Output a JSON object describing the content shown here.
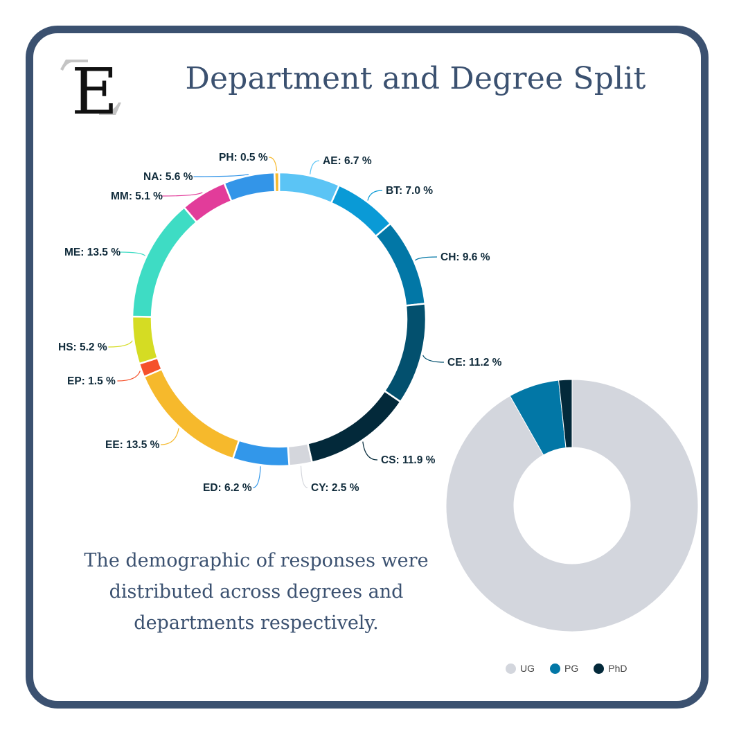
{
  "header": {
    "logo_letter": "E",
    "title": "Department and Degree Split"
  },
  "caption": {
    "line1": "The demographic of responses were",
    "line2": "distributed across degrees and",
    "line3": "departments respectively."
  },
  "colors": {
    "frame": "#3b5170",
    "text": "#3b5170",
    "label": "#0f2a3a"
  },
  "chart_data": [
    {
      "type": "pie",
      "subtype": "donut",
      "title": "Department Split",
      "start": "top, clockwise",
      "categories": [
        "AE",
        "BT",
        "CH",
        "CE",
        "CS",
        "CY",
        "ED",
        "EE",
        "EP",
        "HS",
        "ME",
        "MM",
        "NA",
        "PH"
      ],
      "values": [
        6.7,
        7.0,
        9.6,
        11.2,
        11.9,
        2.5,
        6.2,
        13.5,
        1.5,
        5.2,
        13.5,
        5.1,
        5.6,
        0.5
      ],
      "labels": [
        "AE: 6.7 %",
        "BT: 7.0 %",
        "CH: 9.6 %",
        "CE: 11.2 %",
        "CS: 11.9 %",
        "CY: 2.5 %",
        "ED: 6.2 %",
        "EE: 13.5 %",
        "EP: 1.5 %",
        "HS: 5.2 %",
        "ME: 13.5 %",
        "MM: 5.1 %",
        "NA: 5.6 %",
        "PH: 0.5 %"
      ],
      "colors": [
        "#5bc4f5",
        "#0a9ad6",
        "#0277a6",
        "#03506e",
        "#03293a",
        "#d4d6dc",
        "#3297ea",
        "#f6b92c",
        "#f5512b",
        "#d5dc23",
        "#3edcc4",
        "#e23c9a",
        "#3395e8",
        "#f6b92c"
      ],
      "unit": "%"
    },
    {
      "type": "pie",
      "subtype": "donut",
      "title": "Degree Split",
      "start": "top, counter-clockwise",
      "categories": [
        "UG",
        "PG",
        "PhD"
      ],
      "values": [
        91.8,
        6.5,
        1.7
      ],
      "colors": [
        "#d3d6dd",
        "#0277a6",
        "#03293a"
      ],
      "legend_position": "bottom",
      "data_labels": false
    }
  ],
  "legend": {
    "items": [
      {
        "label": "UG",
        "color": "#d3d6dd"
      },
      {
        "label": "PG",
        "color": "#0277a6"
      },
      {
        "label": "PhD",
        "color": "#03293a"
      }
    ]
  }
}
